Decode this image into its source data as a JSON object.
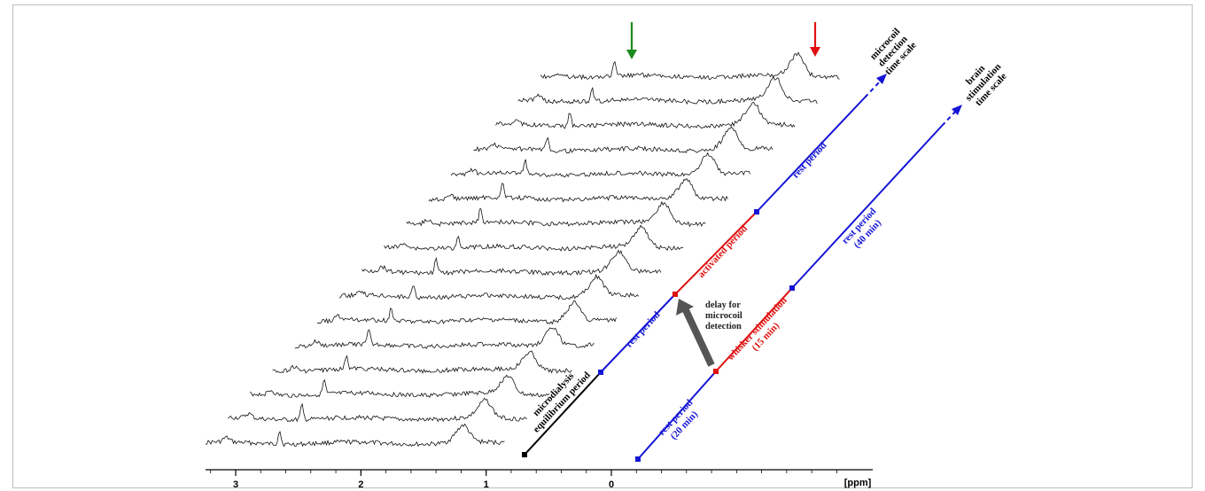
{
  "chart_data": {
    "type": "waterfall_nmr_spectra",
    "x_axis": {
      "label": "[ppm]",
      "ticks": [
        3,
        2,
        1,
        0
      ],
      "direction": "reversed"
    },
    "series_count": 16,
    "peaks_ppm": [
      2.65,
      1.2,
      -0.1
    ],
    "arrows": [
      {
        "color": "green",
        "target": "reference-peak"
      },
      {
        "color": "red",
        "target": "right-peak"
      }
    ]
  },
  "timelines": {
    "microcoil": {
      "label_lines": [
        "microcoil",
        "detection",
        "time scale"
      ],
      "segments": [
        "microdialysis",
        "equilibrium period",
        "rest period",
        "activated period",
        "rest period"
      ]
    },
    "stimulation": {
      "label_lines": [
        "brain",
        "stimulation",
        "time scale"
      ],
      "segments": [
        "rest period",
        "(20 min)",
        "whisker stimulation",
        "(15 min)",
        "rest period",
        "(40 min)"
      ]
    }
  },
  "delay_label": [
    "delay for",
    "microcoil",
    "detection"
  ],
  "colors": {
    "blue": "#1515d6",
    "red": "#e01010",
    "black": "#000000",
    "green": "#1c8a1c",
    "gray": "#555555"
  }
}
